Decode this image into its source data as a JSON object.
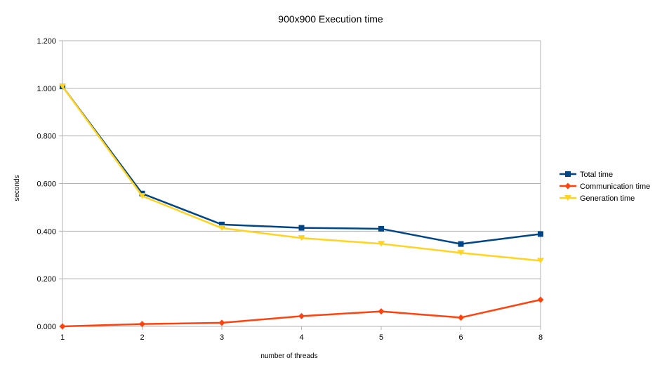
{
  "chart_data": {
    "type": "line",
    "title": "900x900 Execution time",
    "xlabel": "number of threads",
    "ylabel": "seconds",
    "categories": [
      "1",
      "2",
      "3",
      "4",
      "5",
      "6",
      "8"
    ],
    "ylim": [
      0,
      1.2
    ],
    "yticks": [
      "0.000",
      "0.200",
      "0.400",
      "0.600",
      "0.800",
      "1.000",
      "1.200"
    ],
    "grid": true,
    "legend_position": "right",
    "series": [
      {
        "name": "Total time",
        "color": "#004586",
        "marker": "square",
        "values": [
          1.008,
          0.558,
          0.428,
          0.414,
          0.41,
          0.346,
          0.388
        ]
      },
      {
        "name": "Communication time",
        "color": "#ff420e",
        "marker": "diamond",
        "values": [
          0.0,
          0.01,
          0.015,
          0.043,
          0.063,
          0.037,
          0.112
        ]
      },
      {
        "name": "Generation time",
        "color": "#ffd320",
        "marker": "triangle-down",
        "values": [
          1.008,
          0.548,
          0.413,
          0.371,
          0.347,
          0.309,
          0.276
        ]
      }
    ]
  }
}
